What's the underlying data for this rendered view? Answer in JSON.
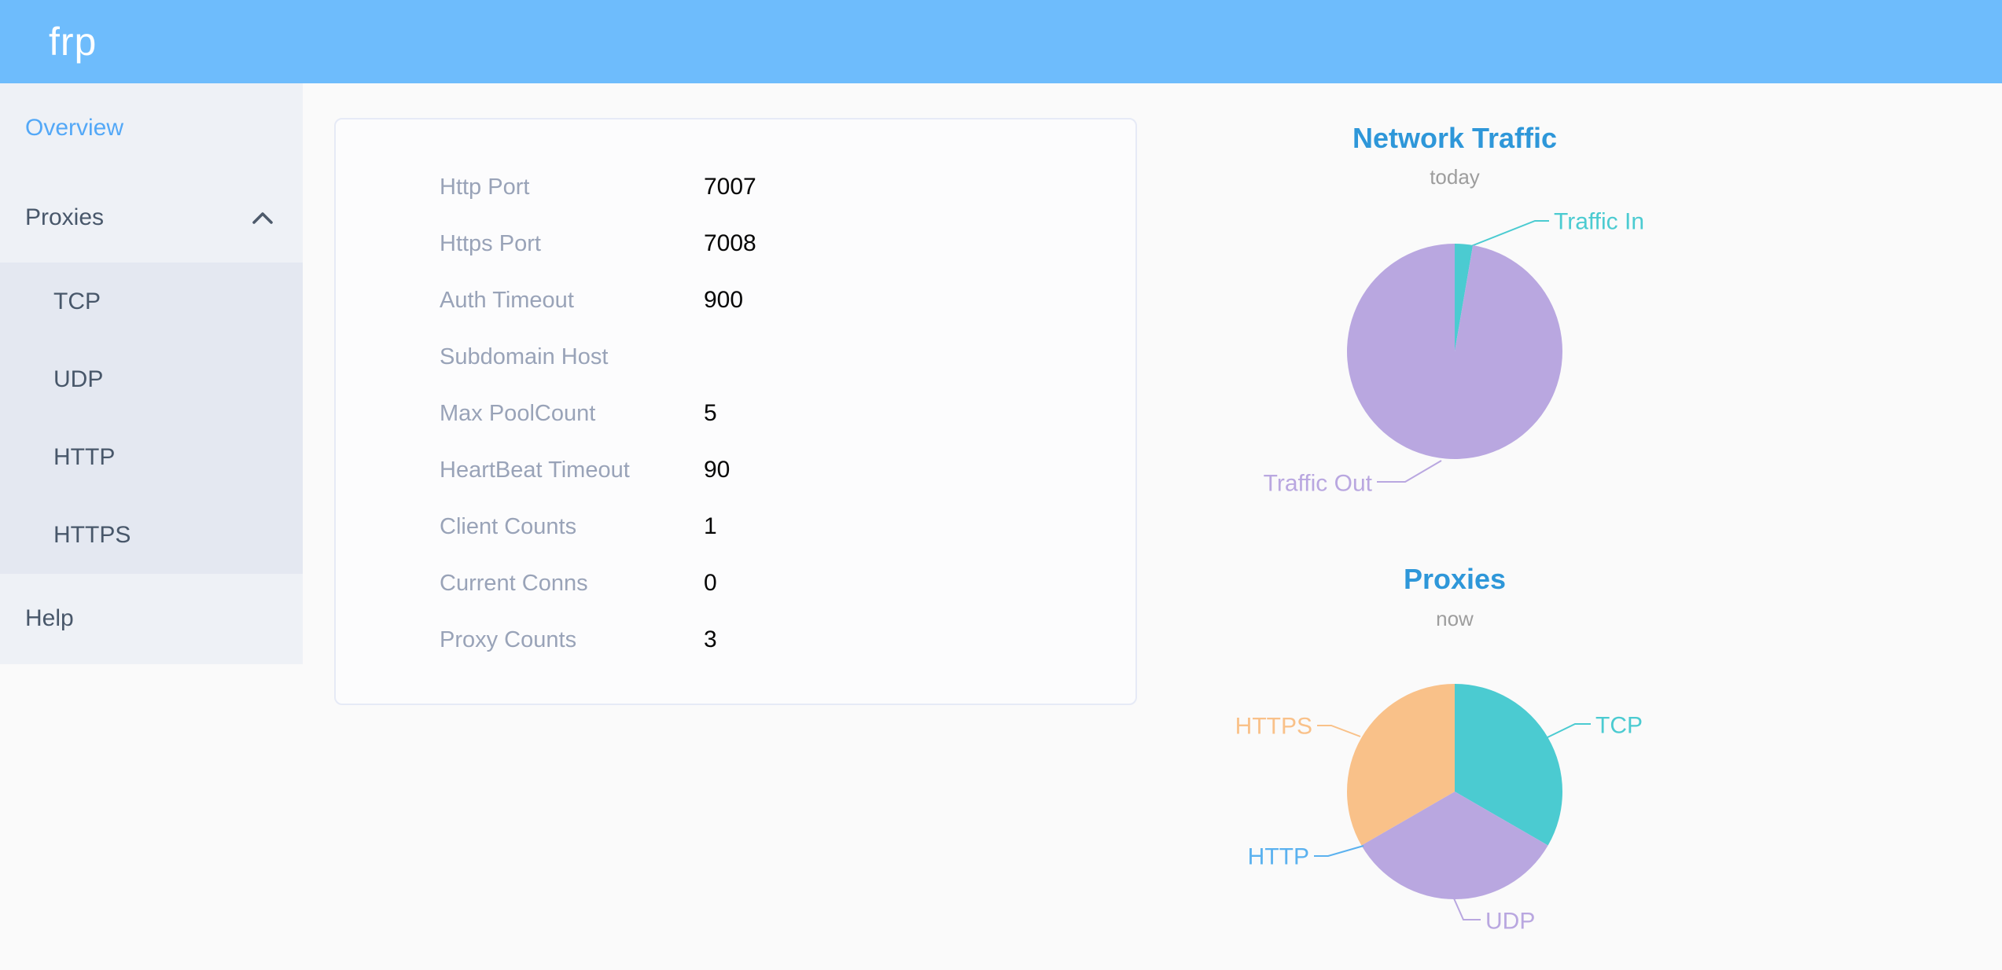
{
  "header": {
    "logo": "frp"
  },
  "sidebar": {
    "overview": {
      "label": "Overview",
      "active": true
    },
    "proxies": {
      "label": "Proxies",
      "expanded": true
    },
    "proxies_children": [
      "TCP",
      "UDP",
      "HTTP",
      "HTTPS"
    ],
    "help": {
      "label": "Help"
    }
  },
  "server_config": {
    "rows": [
      {
        "label": "Http Port",
        "value": "7007"
      },
      {
        "label": "Https Port",
        "value": "7008"
      },
      {
        "label": "Auth Timeout",
        "value": "900"
      },
      {
        "label": "Subdomain Host",
        "value": ""
      },
      {
        "label": "Max PoolCount",
        "value": "5"
      },
      {
        "label": "HeartBeat Timeout",
        "value": "90"
      },
      {
        "label": "Client Counts",
        "value": "1"
      },
      {
        "label": "Current Conns",
        "value": "0"
      },
      {
        "label": "Proxy Counts",
        "value": "3"
      }
    ]
  },
  "colors": {
    "header_bg": "#6ebcfc",
    "sidebar_bg": "#eef1f6",
    "submenu_bg": "#e4e8f1",
    "sidebar_text": "#48576a",
    "active_link": "#53a8f7",
    "chart_title_blue": "#2e97d9",
    "subtitle_gray": "#9d9d9d",
    "config_label_gray": "#99a3b8",
    "pie_teal": "#4bcbd1",
    "pie_purple": "#b9a7e0",
    "pie_blue": "#5ab1ef",
    "pie_orange": "#f9c189"
  },
  "chart_data": [
    {
      "type": "pie",
      "title": "Network Traffic",
      "subtitle": "today",
      "legend_position": "none",
      "label_style": "outside-leader-lines",
      "unit": "percent (estimated from slice angles; no numeric values shown)",
      "slices": [
        {
          "label": "Traffic In",
          "value": 2.7,
          "color": "#4bcbd1"
        },
        {
          "label": "Traffic Out",
          "value": 97.3,
          "color": "#b9a7e0"
        }
      ]
    },
    {
      "type": "pie",
      "title": "Proxies",
      "subtitle": "now",
      "legend_position": "none",
      "label_style": "outside-leader-lines",
      "unit": "proxy count (total 3, equal thirds; HTTP slice is zero-width)",
      "slices": [
        {
          "label": "TCP",
          "value": 1,
          "color": "#4bcbd1"
        },
        {
          "label": "UDP",
          "value": 1,
          "color": "#b9a7e0"
        },
        {
          "label": "HTTP",
          "value": 0,
          "color": "#5ab1ef"
        },
        {
          "label": "HTTPS",
          "value": 1,
          "color": "#f9c189"
        }
      ]
    }
  ]
}
